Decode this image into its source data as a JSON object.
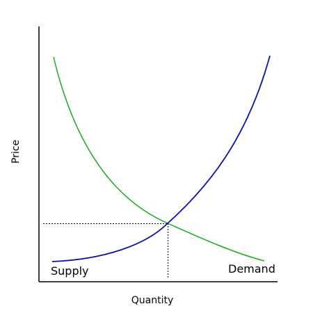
{
  "axes": {
    "y_label": "Price",
    "x_label": "Quantity"
  },
  "curves": [
    {
      "label": "Supply"
    },
    {
      "label": "Demand"
    }
  ]
}
